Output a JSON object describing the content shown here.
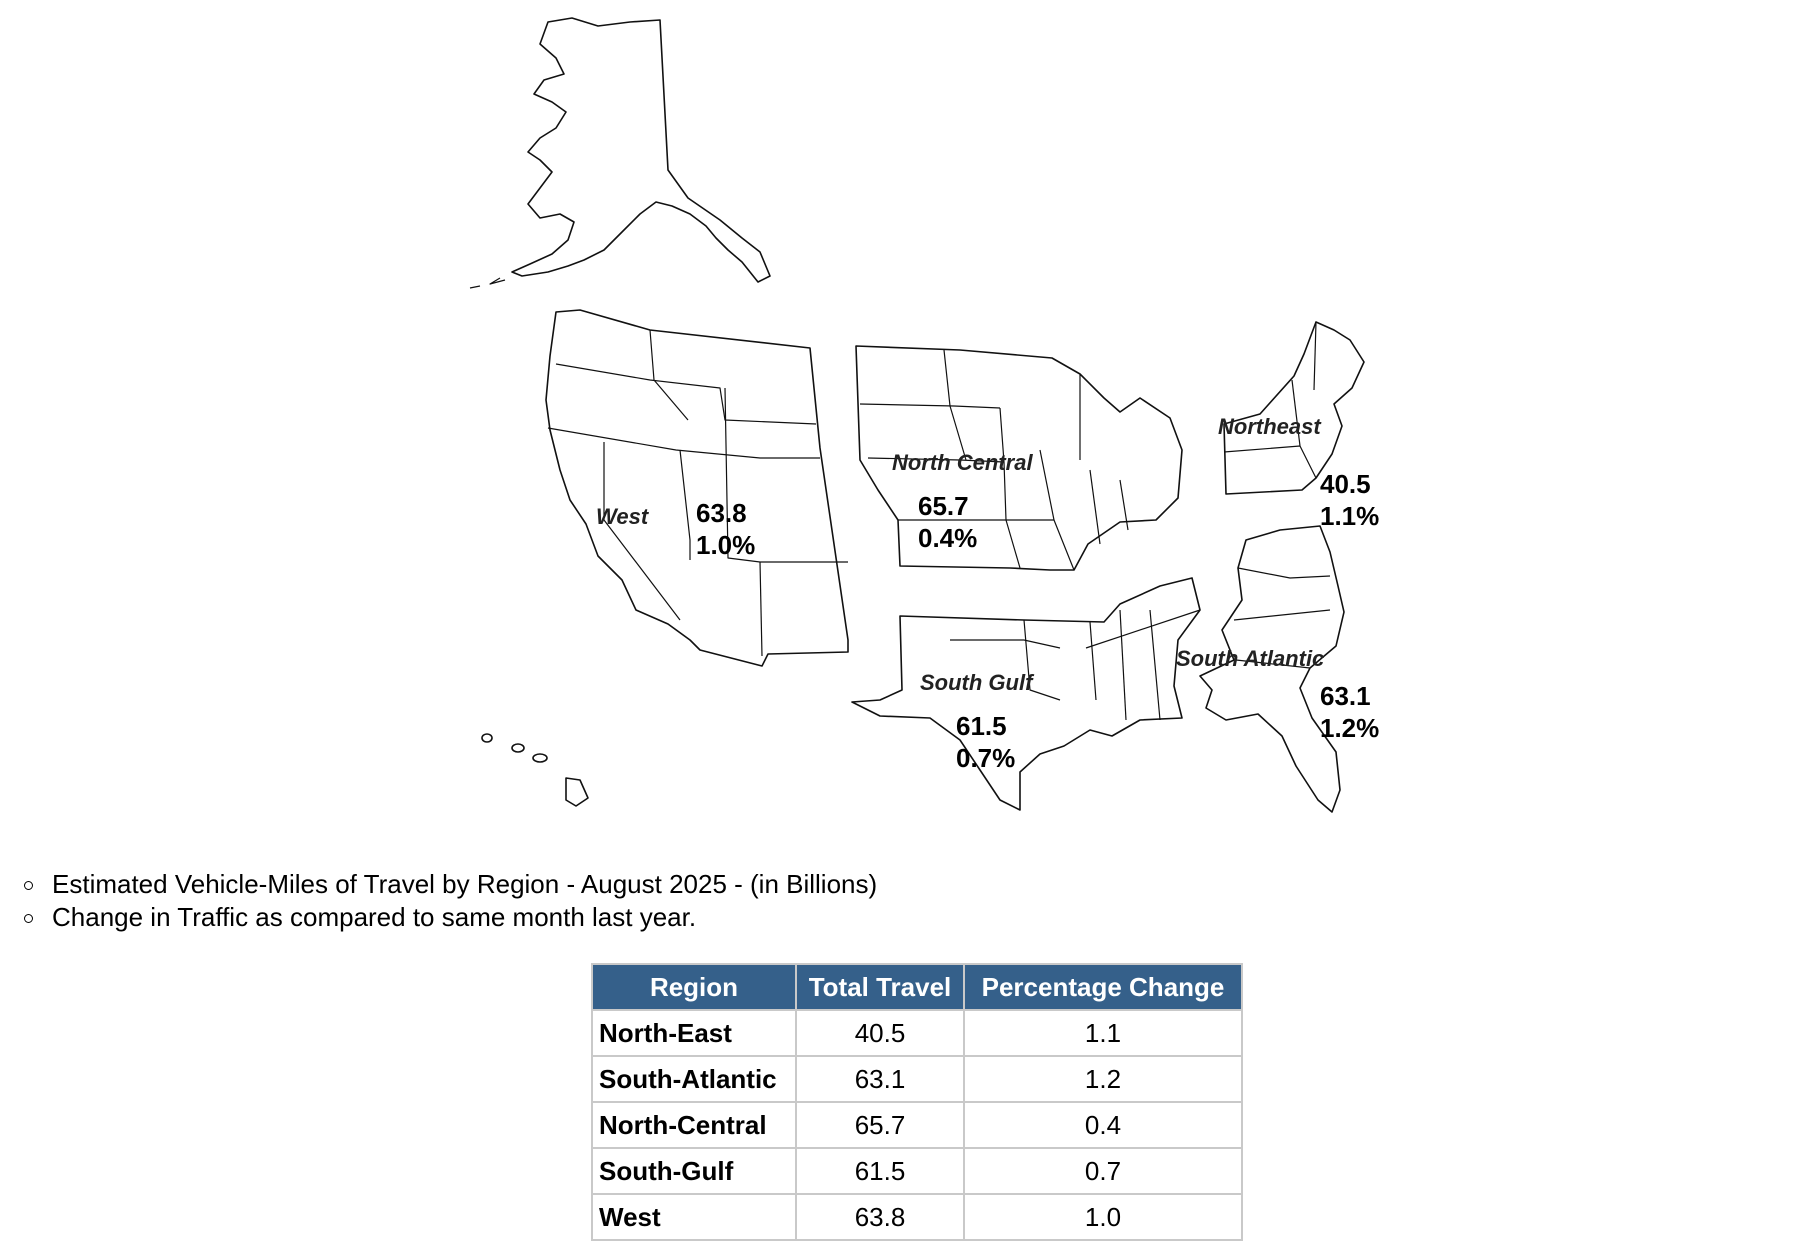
{
  "map": {
    "regions": [
      {
        "key": "west",
        "label": "West",
        "travel": "63.8",
        "change": "1.0%"
      },
      {
        "key": "north-central",
        "label": "North Central",
        "travel": "65.7",
        "change": "0.4%"
      },
      {
        "key": "northeast",
        "label": "Northeast",
        "travel": "40.5",
        "change": "1.1%"
      },
      {
        "key": "south-atlantic",
        "label": "South Atlantic",
        "travel": "63.1",
        "change": "1.2%"
      },
      {
        "key": "south-gulf",
        "label": "South Gulf",
        "travel": "61.5",
        "change": "0.7%"
      }
    ]
  },
  "notes": [
    "Estimated Vehicle-Miles of Travel by Region - August 2025 - (in Billions)",
    "Change in Traffic as compared to same month last year."
  ],
  "table": {
    "headers": [
      "Region",
      "Total Travel",
      "Percentage Change"
    ],
    "rows": [
      [
        "North-East",
        "40.5",
        "1.1"
      ],
      [
        "South-Atlantic",
        "63.1",
        "1.2"
      ],
      [
        "North-Central",
        "65.7",
        "0.4"
      ],
      [
        "South-Gulf",
        "61.5",
        "0.7"
      ],
      [
        "West",
        "63.8",
        "1.0"
      ]
    ],
    "header_color": "#35608a"
  }
}
